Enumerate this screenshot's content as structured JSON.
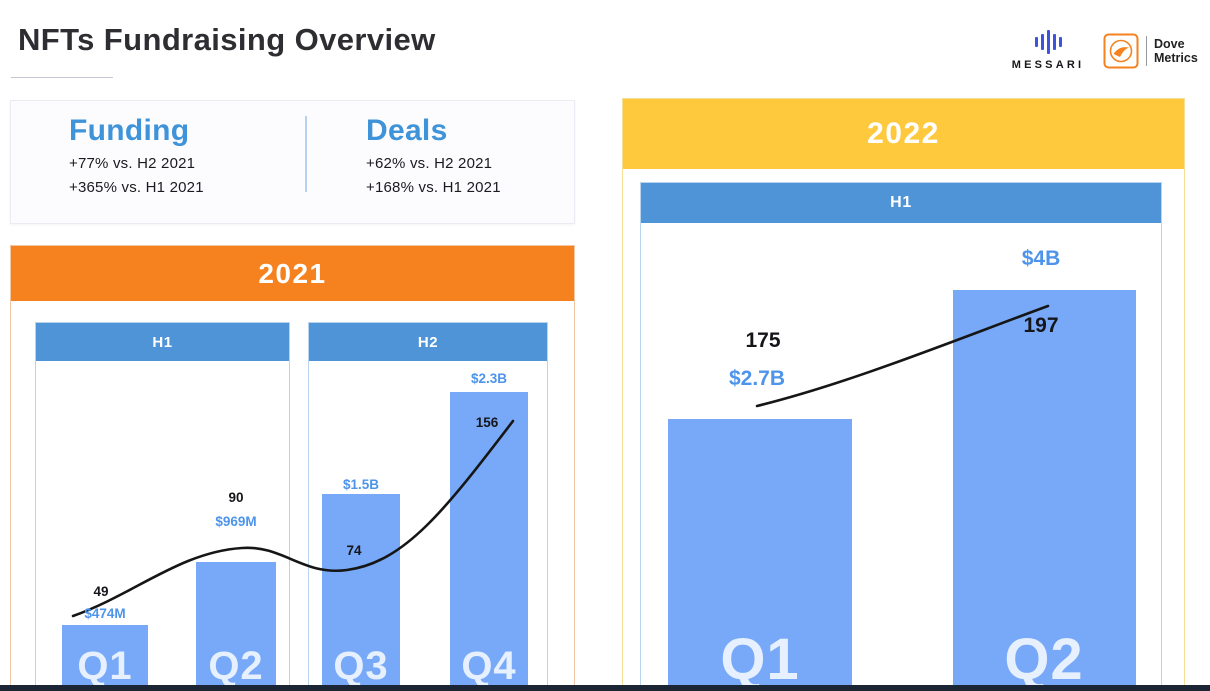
{
  "title": "NFTs Fundraising Overview",
  "logos": {
    "messari_text": "MESSARI",
    "dove_line1": "Dove",
    "dove_line2": "Metrics"
  },
  "stats": {
    "funding_title": "Funding",
    "funding_line1": "+77% vs. H2 2021",
    "funding_line2": "+365% vs. H1 2021",
    "deals_title": "Deals",
    "deals_line1": "+62% vs. H2 2021",
    "deals_line2": "+168% vs. H1 2021"
  },
  "colors": {
    "orange": "#F6821F",
    "yellow": "#FFC93D",
    "header_blue": "#4F94D6",
    "bar_blue": "#77A9F8",
    "value_label_blue": "#4D94EA",
    "trend_line": "#161616",
    "bottom_bar": "#1b2534"
  },
  "chart_data": [
    {
      "type": "bar",
      "title": "2021",
      "groups": [
        {
          "label": "H1",
          "categories": [
            "Q1",
            "Q2"
          ]
        },
        {
          "label": "H2",
          "categories": [
            "Q3",
            "Q4"
          ]
        }
      ],
      "categories": [
        "Q1",
        "Q2",
        "Q3",
        "Q4"
      ],
      "series": [
        {
          "name": "Funding",
          "unit": "USD millions",
          "values": [
            474,
            969,
            1500,
            2300
          ],
          "labels": [
            "$474M",
            "$969M",
            "$1.5B",
            "$2.3B"
          ]
        },
        {
          "name": "Deals",
          "unit": "count",
          "values": [
            49,
            90,
            74,
            156
          ],
          "labels": [
            "49",
            "90",
            "74",
            "156"
          ],
          "style": "line"
        }
      ],
      "legend_position": "none",
      "grid": false,
      "axes_visible": false
    },
    {
      "type": "bar",
      "title": "2022",
      "groups": [
        {
          "label": "H1",
          "categories": [
            "Q1",
            "Q2"
          ]
        }
      ],
      "categories": [
        "Q1",
        "Q2"
      ],
      "series": [
        {
          "name": "Funding",
          "unit": "USD millions",
          "values": [
            2700,
            4000
          ],
          "labels": [
            "$2.7B",
            "$4B"
          ]
        },
        {
          "name": "Deals",
          "unit": "count",
          "values": [
            175,
            197
          ],
          "labels": [
            "175",
            "197"
          ],
          "style": "line"
        }
      ],
      "legend_position": "none",
      "grid": false,
      "axes_visible": false
    }
  ]
}
